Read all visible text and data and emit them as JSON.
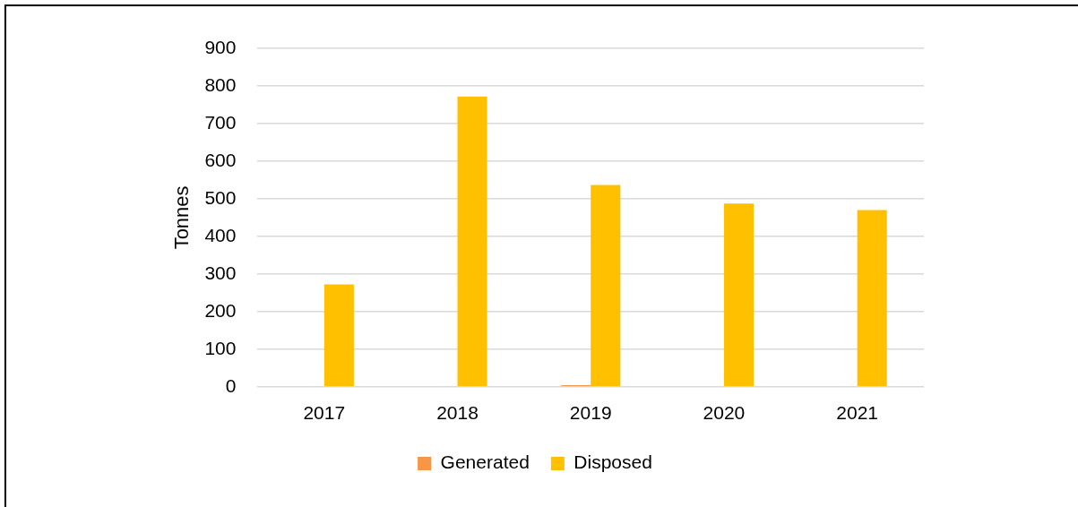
{
  "chart_data": {
    "type": "bar",
    "ylabel": "Tonnes",
    "categories": [
      "2017",
      "2018",
      "2019",
      "2020",
      "2021"
    ],
    "series": [
      {
        "name": "Generated",
        "color": "#f79646",
        "values": [
          0,
          0,
          4,
          0,
          0
        ]
      },
      {
        "name": "Disposed",
        "color": "#ffc000",
        "values": [
          272,
          772,
          537,
          487,
          470
        ]
      }
    ],
    "ylim": [
      0,
      900
    ],
    "yticks": [
      0,
      100,
      200,
      300,
      400,
      500,
      600,
      700,
      800,
      900
    ],
    "grid": "y",
    "legend": "bottom"
  }
}
